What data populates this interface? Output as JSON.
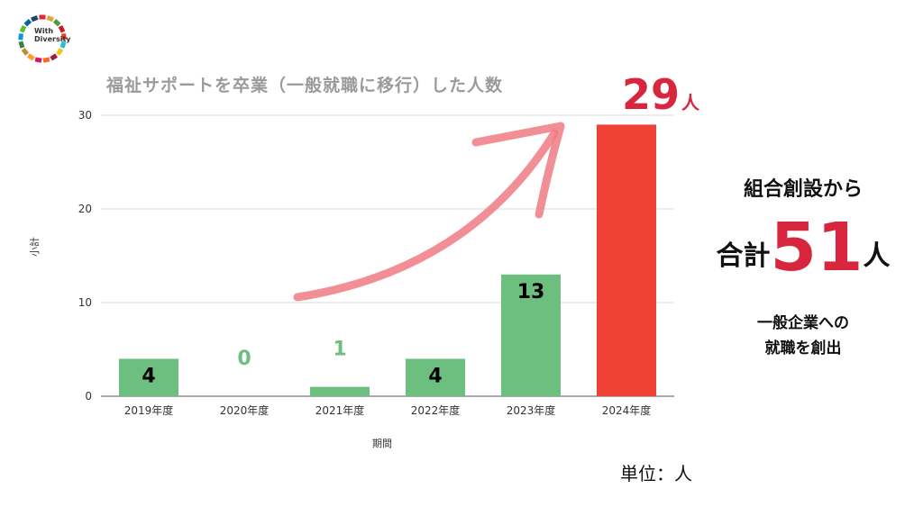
{
  "logo": {
    "line1": "With",
    "line2": "Diversity"
  },
  "chart_data": {
    "type": "bar",
    "title": "福祉サポートを卒業（一般就職に移行）した人数",
    "xlabel": "期間",
    "ylabel": "小計",
    "categories": [
      "2019年度",
      "2020年度",
      "2021年度",
      "2022年度",
      "2023年度",
      "2024年度"
    ],
    "values": [
      4,
      0,
      1,
      4,
      13,
      29
    ],
    "data_labels": [
      "4",
      "0",
      "1",
      "4",
      "13",
      ""
    ],
    "yticks": [
      0,
      10,
      20,
      30
    ],
    "ylim": [
      0,
      32
    ],
    "grid": true,
    "colors": {
      "bar": "#6cbf7f",
      "highlight": "#ef4136",
      "label_outside": "#6cbf7f",
      "arrow": "#f07b84"
    }
  },
  "callout": {
    "value": "29",
    "unit": "人"
  },
  "summary": {
    "line1": "組合創設から",
    "prefix": "合計",
    "value": "51",
    "unit": "人",
    "line3": "一般企業への",
    "line4": "就職を創出"
  },
  "unit_note": "単位：人"
}
